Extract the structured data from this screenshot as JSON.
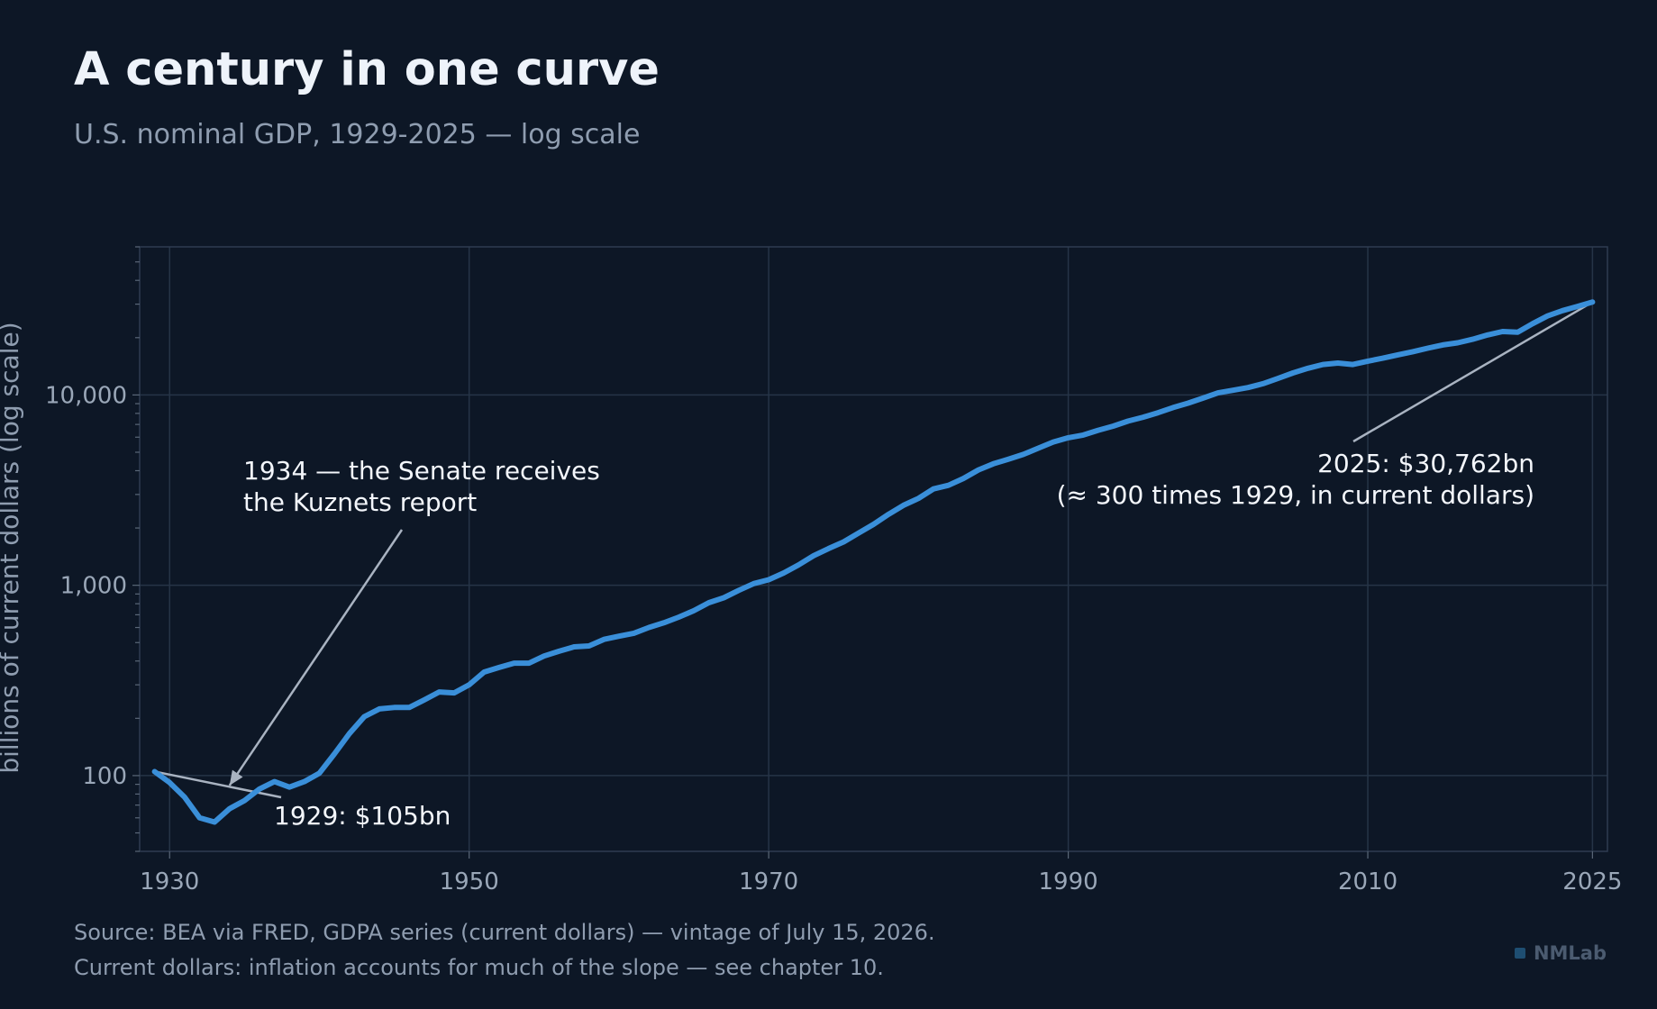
{
  "title": "A century in one curve",
  "subtitle": "U.S. nominal GDP, 1929-2025 — log scale",
  "footer": {
    "line1": "Source: BEA via FRED, GDPA series (current dollars) — vintage of July 15, 2026.",
    "line2": "Current dollars: inflation accounts for much of the slope — see chapter 10."
  },
  "brand": "NMLab",
  "chart_data": {
    "type": "line",
    "ylabel": "billions of current dollars (log scale)",
    "yscale": "log",
    "xlim": [
      1928,
      2026
    ],
    "ylim": [
      40,
      60000
    ],
    "grid": true,
    "x_ticks": [
      {
        "value": 1930,
        "label": "1930"
      },
      {
        "value": 1950,
        "label": "1950"
      },
      {
        "value": 1970,
        "label": "1970"
      },
      {
        "value": 1990,
        "label": "1990"
      },
      {
        "value": 2010,
        "label": "2010"
      },
      {
        "value": 2025,
        "label": "2025"
      }
    ],
    "y_ticks": [
      {
        "value": 100,
        "label": "100"
      },
      {
        "value": 1000,
        "label": "1,000"
      },
      {
        "value": 10000,
        "label": "10,000"
      }
    ],
    "line_color": "#3a8fd9",
    "series": [
      {
        "x": [
          1929,
          1930,
          1931,
          1932,
          1933,
          1934,
          1935,
          1936,
          1937,
          1938,
          1939,
          1940,
          1941,
          1942,
          1943,
          1944,
          1945,
          1946,
          1947,
          1948,
          1949,
          1950,
          1951,
          1952,
          1953,
          1954,
          1955,
          1956,
          1957,
          1958,
          1959,
          1960,
          1961,
          1962,
          1963,
          1964,
          1965,
          1966,
          1967,
          1968,
          1969,
          1970,
          1971,
          1972,
          1973,
          1974,
          1975,
          1976,
          1977,
          1978,
          1979,
          1980,
          1981,
          1982,
          1983,
          1984,
          1985,
          1986,
          1987,
          1988,
          1989,
          1990,
          1991,
          1992,
          1993,
          1994,
          1995,
          1996,
          1997,
          1998,
          1999,
          2000,
          2001,
          2002,
          2003,
          2004,
          2005,
          2006,
          2007,
          2008,
          2009,
          2010,
          2011,
          2012,
          2013,
          2014,
          2015,
          2016,
          2017,
          2018,
          2019,
          2020,
          2021,
          2022,
          2023,
          2024,
          2025
        ],
        "values": [
          105,
          92,
          77,
          60,
          57,
          67,
          74,
          85,
          93,
          87,
          93,
          103,
          130,
          166,
          204,
          224,
          228,
          228,
          250,
          275,
          272,
          300,
          350,
          370,
          390,
          390,
          425,
          450,
          475,
          480,
          520,
          540,
          560,
          600,
          635,
          680,
          735,
          810,
          860,
          940,
          1020,
          1070,
          1160,
          1280,
          1430,
          1560,
          1690,
          1880,
          2090,
          2360,
          2630,
          2860,
          3210,
          3350,
          3640,
          4040,
          4350,
          4590,
          4870,
          5250,
          5660,
          5960,
          6160,
          6520,
          6860,
          7290,
          7640,
          8070,
          8580,
          9060,
          9630,
          10250,
          10580,
          10940,
          11460,
          12210,
          13040,
          13810,
          14450,
          14710,
          14450,
          15050,
          15600,
          16250,
          16880,
          17610,
          18300,
          18800,
          19610,
          20660,
          21540,
          21350,
          23680,
          26010,
          27720,
          29180,
          30762
        ]
      }
    ],
    "annotations": [
      {
        "text_lines": [
          "1934 — the Senate receives",
          "the Kuznets report"
        ],
        "x": 1934,
        "y": 85
      },
      {
        "text_lines": [
          "1929: $105bn"
        ],
        "x": 1929,
        "y": 105
      },
      {
        "text_lines": [
          "2025: $30,762bn",
          "(≈ 300 times 1929, in current dollars)"
        ],
        "x": 2025,
        "y": 30762
      }
    ]
  }
}
